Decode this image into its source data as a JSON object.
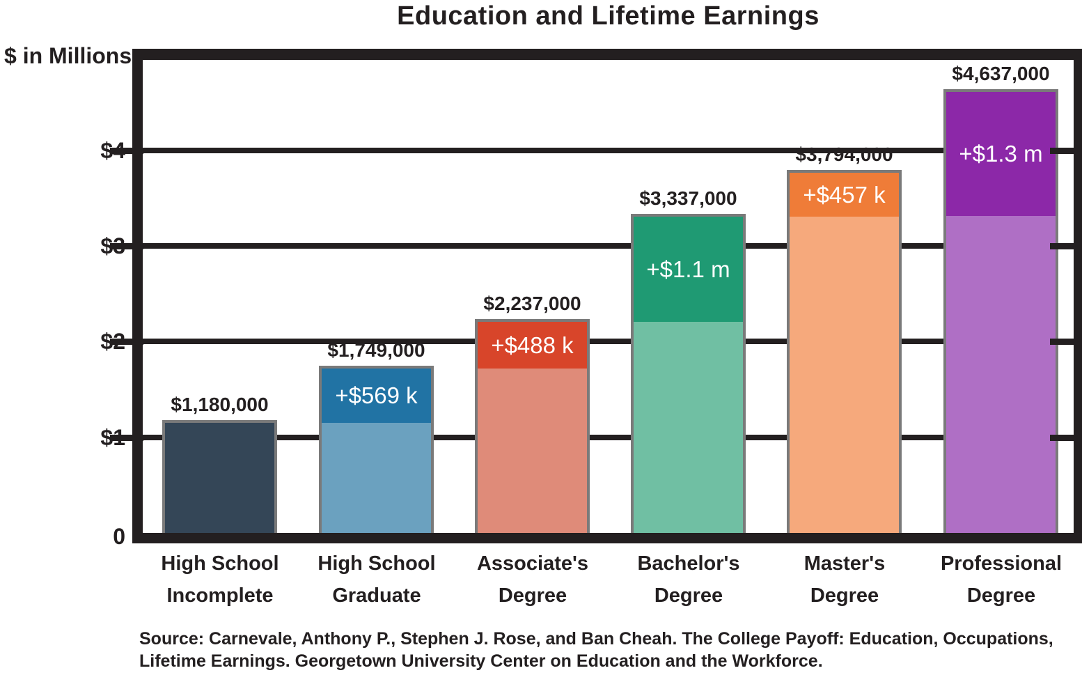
{
  "title": "Education and Lifetime Earnings",
  "y_axis": {
    "title": "$ in Millions",
    "tick_labels": [
      "$4",
      "$3",
      "$2",
      "$1",
      "0"
    ]
  },
  "source": "Source: Carnevale, Anthony P., Stephen J. Rose, and Ban Cheah. The College Payoff: Education, Occupations, Lifetime Earnings. Georgetown University Center on Education and the Workforce.",
  "chart_data": {
    "type": "bar",
    "stacked": true,
    "title": "Education and Lifetime Earnings",
    "ylabel": "$ in Millions",
    "unit": "USD (millions)",
    "ylim_millions": [
      0,
      4.95
    ],
    "ytick_values_millions": [
      4,
      3,
      2,
      1,
      0
    ],
    "grid": true,
    "legend": false,
    "axis_color": "#231f20",
    "bar_border_color": "#7a7a7a",
    "increment_text_color": "#ffffff",
    "categories": [
      "High School Incomplete",
      "High School Graduate",
      "Associate's Degree",
      "Bachelor's Degree",
      "Master's Degree",
      "Professional Degree"
    ],
    "bars": [
      {
        "category_line1": "High School",
        "category_line2": "Incomplete",
        "total_label": "$1,180,000",
        "total_millions": 1.18,
        "increment_label": "",
        "increment_millions": 0,
        "base_color": "#344657",
        "increment_color": "#344657"
      },
      {
        "category_line1": "High School",
        "category_line2": "Graduate",
        "total_label": "$1,749,000",
        "total_millions": 1.749,
        "increment_label": "+$569 k",
        "increment_millions": 0.569,
        "base_color": "#6ba1bf",
        "increment_color": "#2173a4"
      },
      {
        "category_line1": "Associate's",
        "category_line2": "Degree",
        "total_label": "$2,237,000",
        "total_millions": 2.237,
        "increment_label": "+$488 k",
        "increment_millions": 0.488,
        "base_color": "#df8b79",
        "increment_color": "#d8452a"
      },
      {
        "category_line1": "Bachelor's",
        "category_line2": "Degree",
        "total_label": "$3,337,000",
        "total_millions": 3.337,
        "increment_label": "+$1.1 m",
        "increment_millions": 1.1,
        "base_color": "#70bfa3",
        "increment_color": "#1f9a73"
      },
      {
        "category_line1": "Master's",
        "category_line2": "Degree",
        "total_label": "$3,794,000",
        "total_millions": 3.794,
        "increment_label": "+$457 k",
        "increment_millions": 0.457,
        "base_color": "#f6a97c",
        "increment_color": "#ef7c38"
      },
      {
        "category_line1": "Professional",
        "category_line2": "Degree",
        "total_label": "$4,637,000",
        "total_millions": 4.637,
        "increment_label": "+$1.3 m",
        "increment_millions": 1.3,
        "base_color": "#af6fc5",
        "increment_color": "#8c28a8"
      }
    ]
  }
}
